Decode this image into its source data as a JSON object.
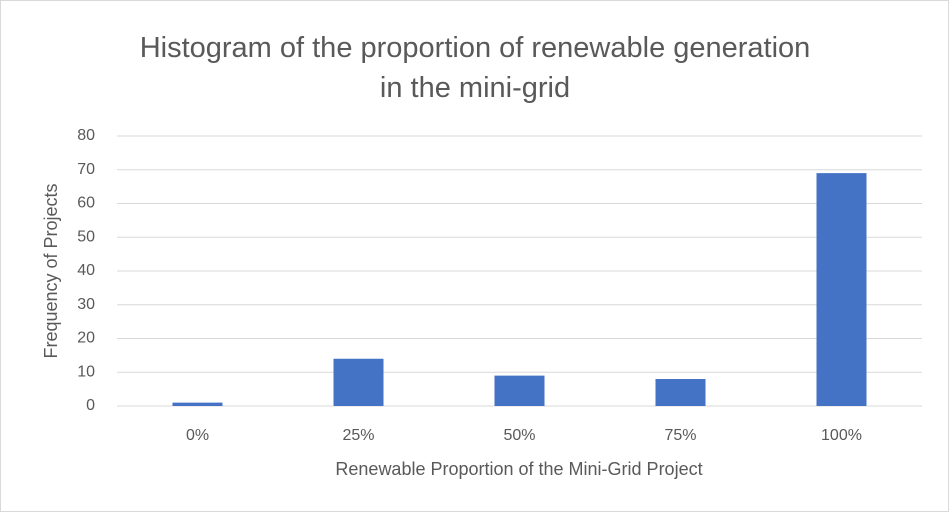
{
  "chart_data": {
    "type": "bar",
    "title": "Histogram of the proportion of renewable generation\nin the mini-grid",
    "x_label": "Renewable Proportion of the Mini-Grid Project",
    "y_label": "Frequency of Projects",
    "categories": [
      "0%",
      "25%",
      "50%",
      "75%",
      "100%"
    ],
    "values": [
      1,
      14,
      9,
      8,
      69
    ],
    "color": "#4472c4",
    "ylim": [
      0,
      80
    ],
    "yticks": [
      0,
      10,
      20,
      30,
      40,
      50,
      60,
      70,
      80
    ],
    "grid": true
  }
}
